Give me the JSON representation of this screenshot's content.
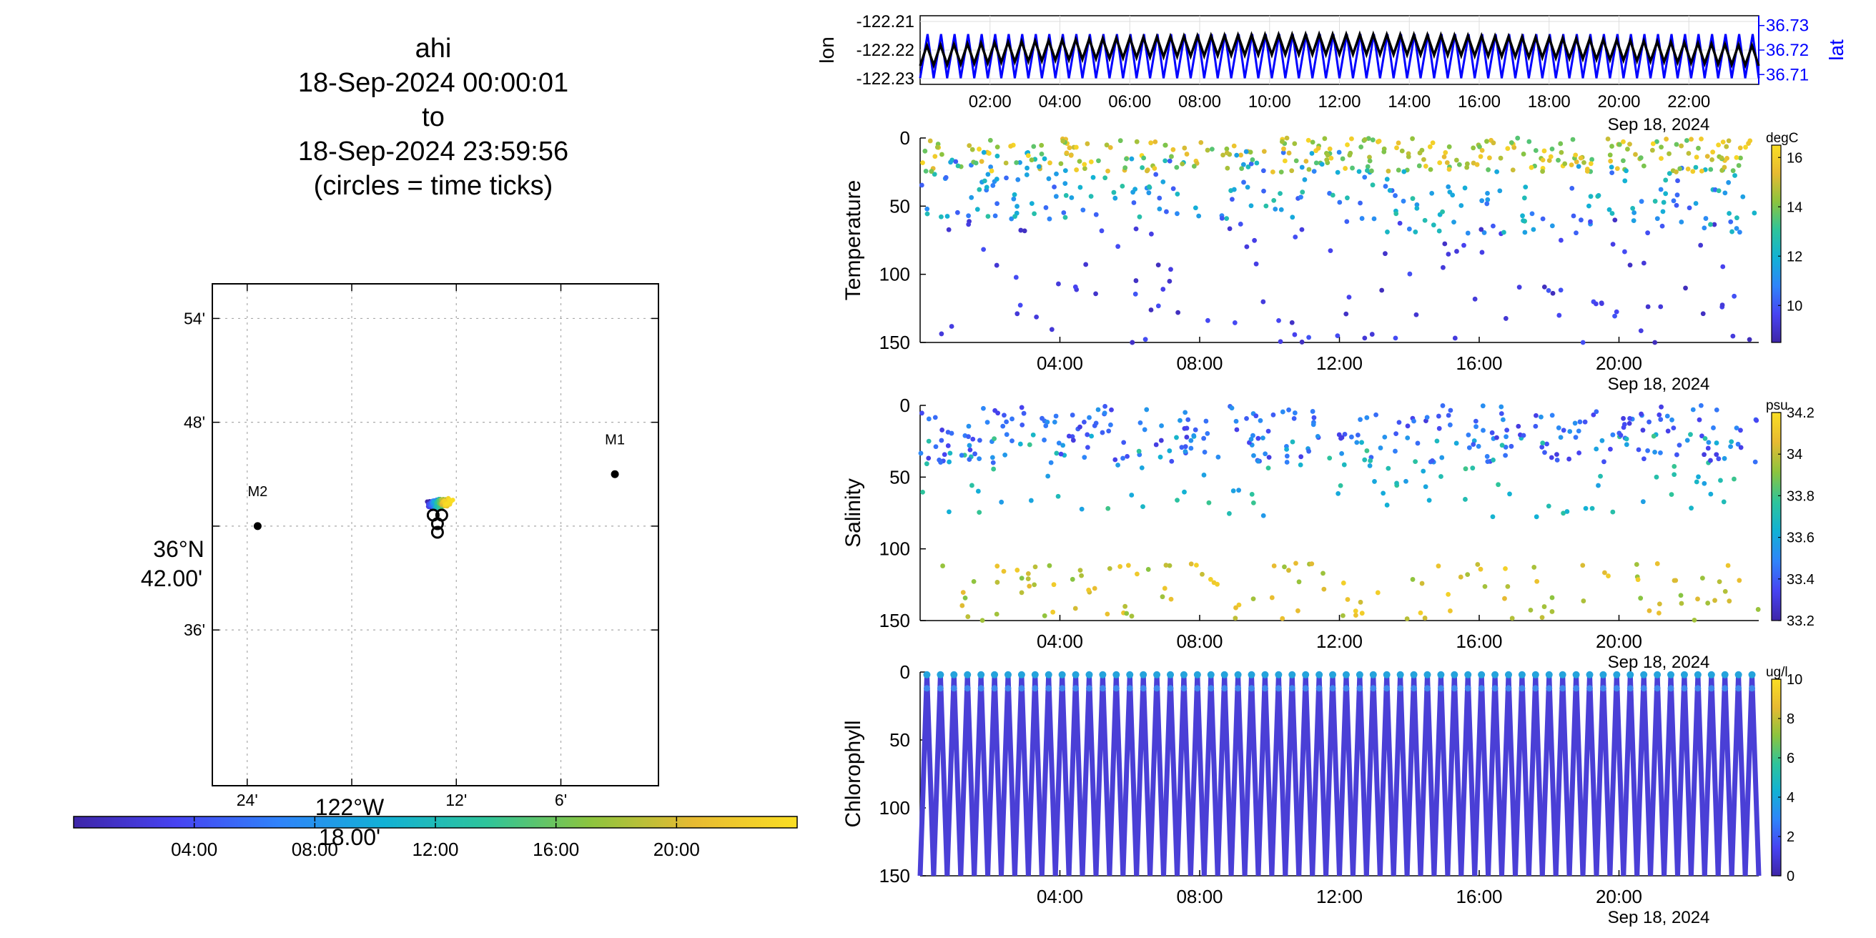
{
  "title": {
    "lines": [
      "ahi",
      "18-Sep-2024 00:00:01",
      "to",
      "18-Sep-2024 23:59:56",
      "(circles = time ticks)"
    ]
  },
  "map": {
    "y_ticks": [
      "54'",
      "48'",
      "36'"
    ],
    "y_center_label": [
      "36°N",
      "42.00'"
    ],
    "x_ticks": [
      "24'",
      "12'",
      "6'"
    ],
    "x_center_label": [
      "122°W",
      "18.00'"
    ],
    "moorings": [
      {
        "name": "M2",
        "lon_min": 23.4,
        "lat_min": 42.0
      },
      {
        "name": "M1",
        "lon_min": 2.9,
        "lat_min": 45.0
      }
    ],
    "track_lon_min": 13.0,
    "track_lat_min": 42.8,
    "time_colorbar_ticks": [
      "04:00",
      "08:00",
      "12:00",
      "16:00",
      "20:00"
    ],
    "colormap": [
      "#3e26a8",
      "#4743f2",
      "#2f84fa",
      "#12b1d5",
      "#2ec49a",
      "#8cc43e",
      "#e7ba32",
      "#fade23"
    ]
  },
  "chart_data": [
    {
      "type": "line",
      "name": "position",
      "ylabel": "lon",
      "ylabel_right": "lat",
      "yticks": [
        "-122.21",
        "-122.22",
        "-122.23"
      ],
      "yticks_right": [
        "36.73",
        "36.72",
        "36.71"
      ],
      "ylim": [
        -122.232,
        -122.208
      ],
      "ylim_right": [
        36.706,
        36.734
      ],
      "xticks": [
        "02:00",
        "04:00",
        "06:00",
        "08:00",
        "10:00",
        "12:00",
        "14:00",
        "16:00",
        "18:00",
        "20:00",
        "22:00"
      ],
      "xdate": "Sep 18, 2024",
      "series": [
        {
          "name": "lon",
          "color": "#000000"
        },
        {
          "name": "lat",
          "color": "#0000ff"
        }
      ],
      "grid": true
    },
    {
      "type": "scatter",
      "ylabel": "Temperature",
      "units": "degC",
      "yticks": [
        "0",
        "50",
        "100",
        "150"
      ],
      "ylim": [
        0,
        150
      ],
      "xticks": [
        "04:00",
        "08:00",
        "12:00",
        "16:00",
        "20:00"
      ],
      "xdate": "Sep 18, 2024",
      "clim": [
        8.5,
        16.5
      ],
      "colorbar_ticks": [
        "16",
        "14",
        "12",
        "10"
      ]
    },
    {
      "type": "scatter",
      "ylabel": "Salinity",
      "units": "psu",
      "yticks": [
        "0",
        "50",
        "100",
        "150"
      ],
      "ylim": [
        0,
        150
      ],
      "xticks": [
        "04:00",
        "08:00",
        "12:00",
        "16:00",
        "20:00"
      ],
      "xdate": "Sep 18, 2024",
      "clim": [
        33.2,
        34.2
      ],
      "colorbar_ticks": [
        "34.2",
        "34",
        "33.8",
        "33.6",
        "33.4",
        "33.2"
      ]
    },
    {
      "type": "scatter",
      "ylabel": "Chlorophyll",
      "units": "ug/l",
      "yticks": [
        "0",
        "50",
        "100",
        "150"
      ],
      "ylim": [
        0,
        150
      ],
      "xticks": [
        "04:00",
        "08:00",
        "12:00",
        "16:00",
        "20:00"
      ],
      "xdate": "Sep 18, 2024",
      "clim": [
        0,
        10
      ],
      "colorbar_ticks": [
        "10",
        "8",
        "6",
        "4",
        "2",
        "0"
      ]
    }
  ]
}
